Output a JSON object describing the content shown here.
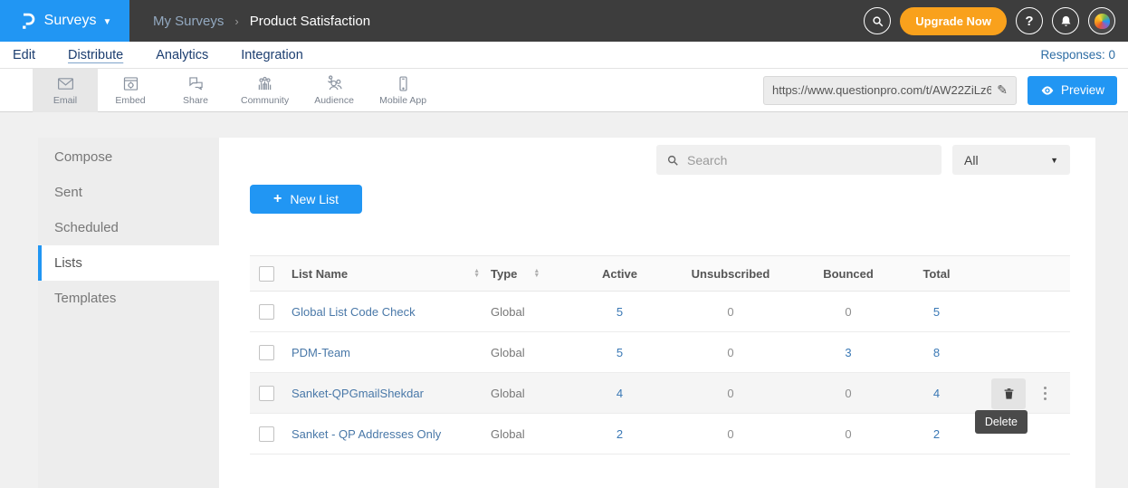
{
  "topbar": {
    "product_label": "Surveys",
    "breadcrumb": {
      "parent": "My Surveys",
      "separator": "›",
      "current": "Product Satisfaction"
    },
    "upgrade_label": "Upgrade Now",
    "help_label": "?"
  },
  "nav": {
    "tabs": [
      {
        "label": "Edit",
        "active": false
      },
      {
        "label": "Distribute",
        "active": true
      },
      {
        "label": "Analytics",
        "active": false
      },
      {
        "label": "Integration",
        "active": false
      }
    ],
    "responses_label": "Responses: 0"
  },
  "toolbar": {
    "channels": [
      {
        "label": "Email",
        "icon": "email-icon",
        "active": true
      },
      {
        "label": "Embed",
        "icon": "embed-icon",
        "active": false
      },
      {
        "label": "Share",
        "icon": "share-icon",
        "active": false
      },
      {
        "label": "Community",
        "icon": "community-icon",
        "active": false
      },
      {
        "label": "Audience",
        "icon": "audience-icon",
        "active": false
      },
      {
        "label": "Mobile App",
        "icon": "mobile-app-icon",
        "active": false
      }
    ],
    "survey_url": "https://www.questionpro.com/t/AW22ZiLz6",
    "preview_label": "Preview"
  },
  "sidebar": {
    "items": [
      {
        "label": "Compose",
        "active": false
      },
      {
        "label": "Sent",
        "active": false
      },
      {
        "label": "Scheduled",
        "active": false
      },
      {
        "label": "Lists",
        "active": true
      },
      {
        "label": "Templates",
        "active": false
      }
    ]
  },
  "main": {
    "search_placeholder": "Search",
    "filter_value": "All",
    "new_list_icon": "+",
    "new_list_label": "New List",
    "table": {
      "columns": [
        "List Name",
        "Type",
        "Active",
        "Unsubscribed",
        "Bounced",
        "Total"
      ],
      "rows": [
        {
          "name": "Global List Code Check",
          "type": "Global",
          "active": "5",
          "unsubscribed": "0",
          "bounced": "0",
          "total": "5",
          "hovered": false,
          "actions_visible": false
        },
        {
          "name": "PDM-Team",
          "type": "Global",
          "active": "5",
          "unsubscribed": "0",
          "bounced": "3",
          "total": "8",
          "hovered": false,
          "actions_visible": false
        },
        {
          "name": "Sanket-QPGmailShekdar",
          "type": "Global",
          "active": "4",
          "unsubscribed": "0",
          "bounced": "0",
          "total": "4",
          "hovered": true,
          "actions_visible": true
        },
        {
          "name": "Sanket - QP Addresses Only",
          "type": "Global",
          "active": "2",
          "unsubscribed": "0",
          "bounced": "0",
          "total": "2",
          "hovered": false,
          "actions_visible": false
        }
      ],
      "delete_tooltip": "Delete"
    }
  },
  "colors": {
    "accent_blue": "#2196f3",
    "topbar_bg": "#3d3d3d",
    "upgrade_orange": "#f9a11c",
    "nav_navy": "#1c3e70",
    "link_blue": "#4978a8"
  }
}
